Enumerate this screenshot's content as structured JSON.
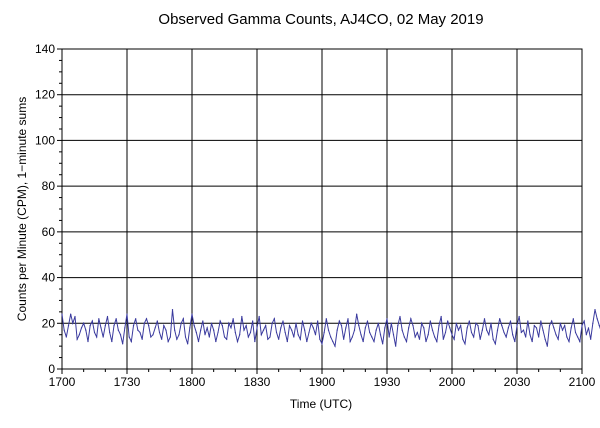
{
  "chart_data": {
    "type": "line",
    "title": "Observed Gamma Counts, AJ4CO, 02 May 2019",
    "xlabel": "Time (UTC)",
    "ylabel": "Counts per Minute (CPM), 1−minute sums",
    "x_ticks": [
      "1700",
      "1730",
      "1800",
      "1830",
      "1900",
      "1930",
      "2000",
      "2030",
      "2100"
    ],
    "y_ticks": [
      "0",
      "20",
      "40",
      "60",
      "80",
      "100",
      "120",
      "140"
    ],
    "x_range": [
      "17:00",
      "21:00"
    ],
    "ylim": [
      0,
      140
    ],
    "grid": true,
    "line_color": "#3a3a9e",
    "series": [
      {
        "x_start": "17:00",
        "x_step_minutes": 1,
        "values": [
          24,
          17,
          14,
          19,
          24,
          20,
          23,
          13,
          15,
          18,
          20,
          17,
          12,
          19,
          21,
          16,
          14,
          22,
          18,
          14,
          19,
          23,
          16,
          12,
          19,
          22,
          17,
          15,
          11,
          18,
          24,
          14,
          12,
          19,
          22,
          17,
          16,
          13,
          20,
          22,
          19,
          14,
          15,
          18,
          21,
          16,
          13,
          19,
          17,
          12,
          14,
          26,
          17,
          13,
          15,
          20,
          22,
          14,
          11,
          18,
          24,
          19,
          16,
          12,
          17,
          21,
          15,
          18,
          14,
          20,
          17,
          12,
          16,
          21,
          19,
          14,
          13,
          20,
          18,
          22,
          16,
          12,
          15,
          23,
          17,
          19,
          14,
          16,
          21,
          12,
          18,
          23,
          15,
          17,
          19,
          13,
          14,
          20,
          22,
          16,
          13,
          18,
          21,
          16,
          12,
          19,
          17,
          14,
          20,
          15,
          13,
          21,
          17,
          12,
          16,
          20,
          18,
          15,
          21,
          13,
          11,
          16,
          22,
          17,
          14,
          12,
          10,
          17,
          21,
          19,
          13,
          18,
          22,
          12,
          14,
          17,
          24,
          19,
          15,
          12,
          18,
          21,
          16,
          14,
          12,
          17,
          20,
          15,
          11,
          18,
          22,
          14,
          20,
          15,
          10,
          19,
          23,
          17,
          14,
          12,
          18,
          22,
          19,
          14,
          16,
          13,
          20,
          18,
          12,
          15,
          21,
          17,
          14,
          12,
          19,
          23,
          13,
          16,
          21,
          18,
          15,
          13,
          20,
          17,
          19,
          13,
          11,
          18,
          21,
          16,
          14,
          20,
          19,
          13,
          17,
          22,
          17,
          15,
          20,
          13,
          11,
          17,
          22,
          19,
          16,
          14,
          18,
          21,
          15,
          12,
          19,
          23,
          16,
          17,
          14,
          21,
          15,
          12,
          19,
          18,
          14,
          21,
          17,
          13,
          10,
          19,
          21,
          18,
          15,
          13,
          20,
          17,
          19,
          14,
          12,
          18,
          22,
          16,
          14,
          12,
          19,
          21,
          15,
          18,
          13,
          20,
          26,
          22,
          19,
          16,
          23,
          25,
          17,
          21,
          26
        ]
      }
    ]
  }
}
